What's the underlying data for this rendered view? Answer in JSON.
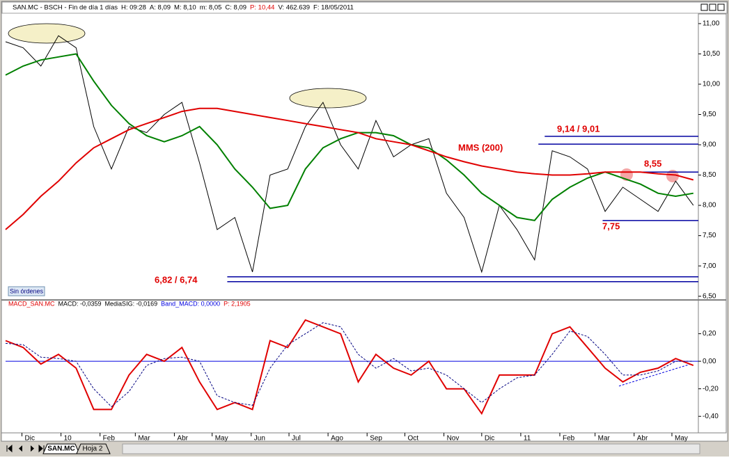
{
  "header": [
    {
      "text": "SAN.MC - BSCH - Fin de día 1 días",
      "color": "#000000"
    },
    {
      "text": "H: 09:28",
      "color": "#000000"
    },
    {
      "text": "A: 8,09",
      "color": "#000000"
    },
    {
      "text": "M: 8,10",
      "color": "#000000"
    },
    {
      "text": "m: 8,05",
      "color": "#000000"
    },
    {
      "text": "C: 8,09",
      "color": "#000000"
    },
    {
      "text": "P: 10,44",
      "color": "#e00000"
    },
    {
      "text": "V: 462.639",
      "color": "#000000"
    },
    {
      "text": "F: 18/05/2011",
      "color": "#000000"
    }
  ],
  "button": "Sin órdenes",
  "tabs": [
    "SAN.MC",
    "Hoja 2"
  ],
  "chart_data": [
    {
      "type": "line",
      "x": [
        0,
        14,
        28,
        42,
        56,
        70,
        84,
        98,
        112,
        126,
        140,
        154,
        168,
        182,
        196,
        210,
        224,
        238,
        252,
        266,
        280,
        294,
        308,
        322,
        336,
        350,
        364,
        378,
        392,
        406,
        420,
        434,
        448,
        462,
        476,
        490,
        504,
        518,
        532,
        546
      ],
      "xlim": [
        0,
        550
      ],
      "ylim": [
        6.45,
        11.16
      ],
      "yticks": [
        {
          "value": 6.5,
          "label": "6,50"
        },
        {
          "value": 7,
          "label": "7,00"
        },
        {
          "value": 7.5,
          "label": "7,50"
        },
        {
          "value": 8,
          "label": "8,00"
        },
        {
          "value": 8.5,
          "label": "8,50"
        },
        {
          "value": 9,
          "label": "9,00"
        },
        {
          "value": 9.5,
          "label": "9,50"
        },
        {
          "value": 10,
          "label": "10,00"
        },
        {
          "value": 10.5,
          "label": "10,50"
        },
        {
          "value": 11,
          "label": "11,00"
        }
      ],
      "series": [
        {
          "color": "#000000",
          "width": 1,
          "values": [
            10.7,
            10.6,
            10.3,
            10.8,
            10.6,
            9.3,
            8.6,
            9.3,
            9.2,
            9.5,
            9.7,
            8.7,
            7.6,
            7.8,
            6.9,
            8.5,
            8.6,
            9.3,
            9.7,
            9.0,
            8.6,
            9.4,
            8.8,
            9.0,
            9.1,
            8.2,
            7.8,
            6.9,
            8.0,
            7.6,
            7.1,
            8.9,
            8.8,
            8.6,
            7.9,
            8.3,
            8.1,
            7.9,
            8.4,
            8.0
          ]
        },
        {
          "color": "#008000",
          "width": 2,
          "values": [
            10.15,
            10.3,
            10.4,
            10.45,
            10.5,
            10.05,
            9.65,
            9.35,
            9.15,
            9.05,
            9.15,
            9.3,
            9.0,
            8.6,
            8.3,
            7.95,
            8.0,
            8.6,
            8.95,
            9.1,
            9.2,
            9.2,
            9.15,
            9.0,
            8.95,
            8.75,
            8.5,
            8.2,
            8.0,
            7.8,
            7.75,
            8.1,
            8.3,
            8.45,
            8.55,
            8.45,
            8.35,
            8.2,
            8.15,
            8.2
          ]
        },
        {
          "color": "#e00000",
          "width": 2,
          "values": [
            7.6,
            7.85,
            8.15,
            8.4,
            8.7,
            8.95,
            9.1,
            9.25,
            9.35,
            9.45,
            9.55,
            9.6,
            9.6,
            9.55,
            9.5,
            9.45,
            9.4,
            9.35,
            9.3,
            9.25,
            9.2,
            9.1,
            9.05,
            9.0,
            8.9,
            8.8,
            8.72,
            8.65,
            8.6,
            8.55,
            8.52,
            8.5,
            8.5,
            8.52,
            8.55,
            8.55,
            8.55,
            8.52,
            8.5,
            8.42
          ]
        }
      ],
      "levels": [
        {
          "value": 6.82,
          "from": 176
        },
        {
          "value": 6.74,
          "from": 176
        },
        {
          "value": 9.14,
          "from": 428
        },
        {
          "value": 9.01,
          "from": 423
        },
        {
          "value": 8.55,
          "from": 474
        },
        {
          "value": 7.75,
          "from": 474
        }
      ],
      "level_color": "#0000a0",
      "annotations": [
        "6,82 / 6,74",
        "9,14 / 9,01",
        "8,55",
        "7,75",
        "MMS (200)"
      ]
    },
    {
      "type": "line",
      "title": [
        "MACD_SAN.MC",
        "MACD: -0,0359",
        "MediaSIG: -0,0169",
        "Band_MACD: 0,0000",
        "P: 2,1905"
      ],
      "x": [
        0,
        14,
        28,
        42,
        56,
        70,
        84,
        98,
        112,
        126,
        140,
        154,
        168,
        182,
        196,
        210,
        224,
        238,
        252,
        266,
        280,
        294,
        308,
        322,
        336,
        350,
        364,
        378,
        392,
        406,
        420,
        434,
        448,
        462,
        476,
        490,
        504,
        518,
        532,
        546
      ],
      "xlim": [
        0,
        550
      ],
      "ylim": [
        -0.51,
        0.4
      ],
      "xticks": [
        {
          "value": 13,
          "label": "Dic"
        },
        {
          "value": 44,
          "label": "10"
        },
        {
          "value": 75,
          "label": "Feb"
        },
        {
          "value": 103,
          "label": "Mar"
        },
        {
          "value": 134,
          "label": "Abr"
        },
        {
          "value": 164,
          "label": "May"
        },
        {
          "value": 195,
          "label": "Jun"
        },
        {
          "value": 225,
          "label": "Jul"
        },
        {
          "value": 256,
          "label": "Ago"
        },
        {
          "value": 287,
          "label": "Sep"
        },
        {
          "value": 317,
          "label": "Oct"
        },
        {
          "value": 348,
          "label": "Nov"
        },
        {
          "value": 378,
          "label": "Dic"
        },
        {
          "value": 409,
          "label": "11"
        },
        {
          "value": 440,
          "label": "Feb"
        },
        {
          "value": 468,
          "label": "Mar"
        },
        {
          "value": 499,
          "label": "Abr"
        },
        {
          "value": 529,
          "label": "May"
        }
      ],
      "yticks": [
        {
          "value": -0.4,
          "label": "-0,40"
        },
        {
          "value": -0.2,
          "label": "-0,20"
        },
        {
          "value": 0,
          "label": "0,00"
        },
        {
          "value": 0.2,
          "label": "0,20"
        }
      ],
      "baseline": 0,
      "baseline_color": "#0000e0",
      "series": [
        {
          "color": "#e00000",
          "width": 2,
          "dash": false,
          "values": [
            0.15,
            0.1,
            -0.02,
            0.05,
            -0.05,
            -0.35,
            -0.35,
            -0.1,
            0.05,
            0.0,
            0.1,
            -0.15,
            -0.35,
            -0.3,
            -0.35,
            0.15,
            0.1,
            0.3,
            0.25,
            0.2,
            -0.15,
            0.05,
            -0.05,
            -0.1,
            0.0,
            -0.2,
            -0.2,
            -0.38,
            -0.1,
            -0.1,
            -0.1,
            0.2,
            0.25,
            0.1,
            -0.05,
            -0.15,
            -0.08,
            -0.05,
            0.02,
            -0.03
          ]
        },
        {
          "color": "#000080",
          "width": 1,
          "dash": true,
          "values": [
            0.13,
            0.12,
            0.03,
            0.02,
            0.0,
            -0.2,
            -0.33,
            -0.22,
            -0.03,
            0.02,
            0.03,
            0.0,
            -0.25,
            -0.3,
            -0.32,
            -0.05,
            0.12,
            0.2,
            0.28,
            0.25,
            0.05,
            -0.05,
            0.02,
            -0.07,
            -0.05,
            -0.1,
            -0.2,
            -0.3,
            -0.2,
            -0.12,
            -0.1,
            0.05,
            0.22,
            0.18,
            0.05,
            -0.1,
            -0.1,
            -0.07,
            0.0,
            0.0
          ]
        }
      ],
      "trendline": {
        "x": [
          487,
          544
        ],
        "values": [
          -0.18,
          -0.02
        ],
        "color": "#0000e0"
      }
    }
  ]
}
